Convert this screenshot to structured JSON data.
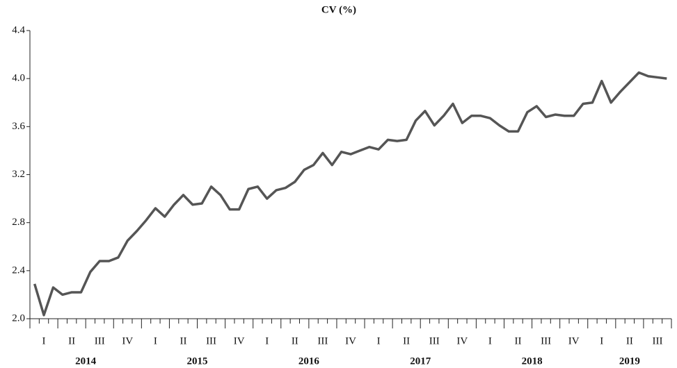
{
  "chart_data": {
    "type": "line",
    "title": "CV (%)",
    "categories": [
      null,
      "I",
      null,
      null,
      "II",
      null,
      null,
      "III",
      null,
      null,
      "IV",
      null,
      null,
      "I",
      null,
      null,
      "II",
      null,
      null,
      "III",
      null,
      null,
      "IV",
      null,
      null,
      "I",
      null,
      null,
      "II",
      null,
      null,
      "III",
      null,
      null,
      "IV",
      null,
      null,
      "I",
      null,
      null,
      "II",
      null,
      null,
      "III",
      null,
      null,
      "IV",
      null,
      null,
      "I",
      null,
      null,
      "II",
      null,
      null,
      "III",
      null,
      null,
      "IV",
      null,
      null,
      "I",
      null,
      null,
      "II",
      null,
      null,
      "III",
      null
    ],
    "year_labels": [
      "2014",
      "2015",
      "2016",
      "2017",
      "2018",
      "2019"
    ],
    "series": [
      {
        "name": "CV",
        "color": "#555555",
        "values": [
          2.29,
          2.03,
          2.26,
          2.2,
          2.22,
          2.22,
          2.39,
          2.48,
          2.48,
          2.51,
          2.65,
          2.73,
          2.82,
          2.92,
          2.85,
          2.95,
          3.03,
          2.95,
          2.96,
          3.1,
          3.03,
          2.91,
          2.91,
          3.08,
          3.1,
          3.0,
          3.07,
          3.09,
          3.14,
          3.24,
          3.28,
          3.38,
          3.28,
          3.39,
          3.37,
          3.4,
          3.43,
          3.41,
          3.49,
          3.48,
          3.49,
          3.65,
          3.73,
          3.61,
          3.69,
          3.79,
          3.63,
          3.69,
          3.69,
          3.67,
          3.61,
          3.56,
          3.56,
          3.72,
          3.77,
          3.68,
          3.7,
          3.69,
          3.69,
          3.79,
          3.8,
          3.98,
          3.8,
          3.89,
          3.97,
          4.05,
          4.02,
          4.01,
          4.0
        ]
      }
    ],
    "ylim": [
      2.0,
      4.4
    ],
    "yticks": [
      {
        "value": 2.0,
        "label": "2.0"
      },
      2.4,
      2.8,
      3.2,
      3.6,
      {
        "value": 4.0,
        "label": "4.0"
      },
      4.4
    ]
  }
}
